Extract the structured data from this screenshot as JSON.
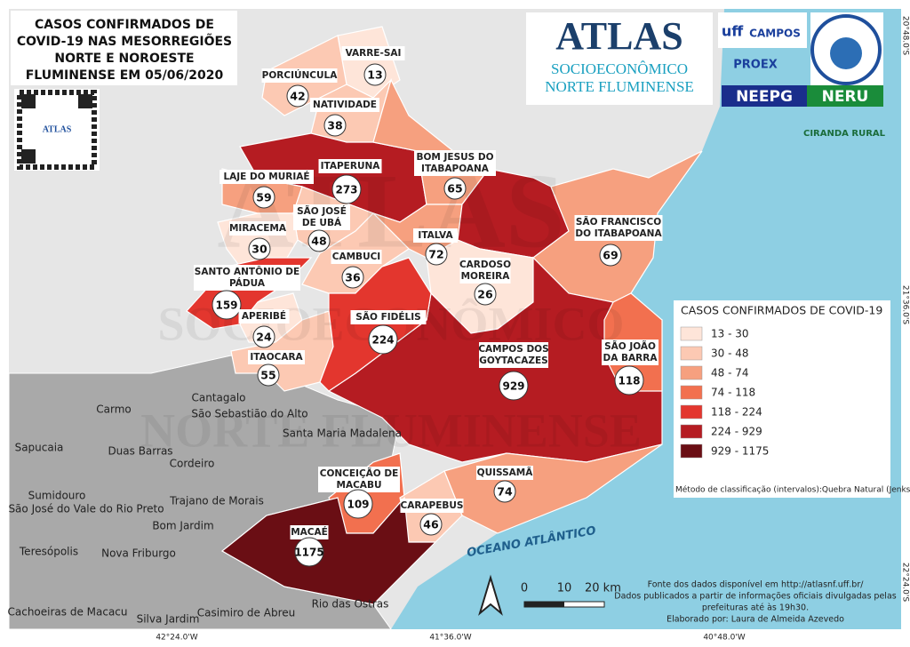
{
  "title": [
    "CASOS CONFIRMADOS DE",
    "COVID-19 NAS MESORREGIÕES",
    "NORTE E NOROESTE",
    "FLUMINENSE EM 05/06/2020"
  ],
  "qr_label": "ATLAS",
  "logo": {
    "line1": "ATLAS",
    "line2": "SOCIOECONÔMICO",
    "line3": "NORTE FLUMINENSE"
  },
  "partners": [
    "uff",
    "CAMPOS",
    "PROEX",
    "NEEPG",
    "NERU",
    "CIRANDA RURAL"
  ],
  "municipalities": [
    {
      "name": [
        "PORCIÚNCULA"
      ],
      "cases": "42"
    },
    {
      "name": [
        "VARRE-SAI"
      ],
      "cases": "13"
    },
    {
      "name": [
        "NATIVIDADE"
      ],
      "cases": "38"
    },
    {
      "name": [
        "ITAPERUNA"
      ],
      "cases": "273"
    },
    {
      "name": [
        "BOM JESUS DO",
        "ITABAPOANA"
      ],
      "cases": "65"
    },
    {
      "name": [
        "LAJE DO MURIAÉ"
      ],
      "cases": "59"
    },
    {
      "name": [
        "SÃO JOSÉ",
        "DE UBÁ"
      ],
      "cases": "48"
    },
    {
      "name": [
        "MIRACEMA"
      ],
      "cases": "30"
    },
    {
      "name": [
        "ITALVA"
      ],
      "cases": "72"
    },
    {
      "name": [
        "CAMBUCI"
      ],
      "cases": "36"
    },
    {
      "name": [
        "CARDOSO",
        "MOREIRA"
      ],
      "cases": "26"
    },
    {
      "name": [
        "SÃO FRANCISCO",
        "DO ITABAPOANA"
      ],
      "cases": "69"
    },
    {
      "name": [
        "SANTO ANTÔNIO DE",
        "PÁDUA"
      ],
      "cases": "159"
    },
    {
      "name": [
        "APERIBÉ"
      ],
      "cases": "24"
    },
    {
      "name": [
        "SÃO FIDÉLIS"
      ],
      "cases": "224"
    },
    {
      "name": [
        "SÃO JOÃO",
        "DA BARRA"
      ],
      "cases": "118"
    },
    {
      "name": [
        "CAMPOS DOS",
        "GOYTACAZES"
      ],
      "cases": "929"
    },
    {
      "name": [
        "ITAOCARA"
      ],
      "cases": "55"
    },
    {
      "name": [
        "CONCEIÇÃO DE",
        "MACABU"
      ],
      "cases": "109"
    },
    {
      "name": [
        "QUISSAMÃ"
      ],
      "cases": "74"
    },
    {
      "name": [
        "CARAPEBUS"
      ],
      "cases": "46"
    },
    {
      "name": [
        "MACAÉ"
      ],
      "cases": "1175"
    }
  ],
  "neighbors": [
    "Cantagalo",
    "São Sebastião do Alto",
    "Carmo",
    "Santa Maria Madalena",
    "Sapucaia",
    "Duas Barras",
    "Cordeiro",
    "Sumidouro",
    "São José do Vale do Rio Preto",
    "Trajano de Morais",
    "Bom Jardim",
    "Teresópolis",
    "Nova Friburgo",
    "Cachoeiras de Macacu",
    "Silva Jardim",
    "Casimiro de Abreu",
    "Rio das Ostras"
  ],
  "ocean": "OCEANO ATLÂNTICO",
  "legend": {
    "title": "CASOS CONFIRMADOS DE COVID-19",
    "classes": [
      {
        "label": "13 - 30",
        "color": "#fee5d9"
      },
      {
        "label": "30 - 48",
        "color": "#fcc9b3"
      },
      {
        "label": "48 - 74",
        "color": "#f6a07f"
      },
      {
        "label": "74 - 118",
        "color": "#f2704f"
      },
      {
        "label": "118 - 224",
        "color": "#e3362e"
      },
      {
        "label": "224 - 929",
        "color": "#b51c22"
      },
      {
        "label": "929 - 1175",
        "color": "#6a0e14"
      }
    ],
    "method": "Método de classificação (intervalos):Quebra Natural (Jenks)"
  },
  "scale": [
    "0",
    "10",
    "20 km"
  ],
  "source": [
    "Fonte dos dados disponível em http://atlasnf.uff.br/",
    "Dados publicados a partir de informações oficiais divulgadas pelas",
    "prefeituras até às 19h30.",
    "Elaborado por: Laura de Almeida Azevedo"
  ],
  "longitudes": [
    "42°24.0'W",
    "41°36.0'W",
    "40°48.0'W"
  ],
  "latitudes": [
    "20°48.0'S",
    "21°36.0'S",
    "22°24.0'S"
  ]
}
